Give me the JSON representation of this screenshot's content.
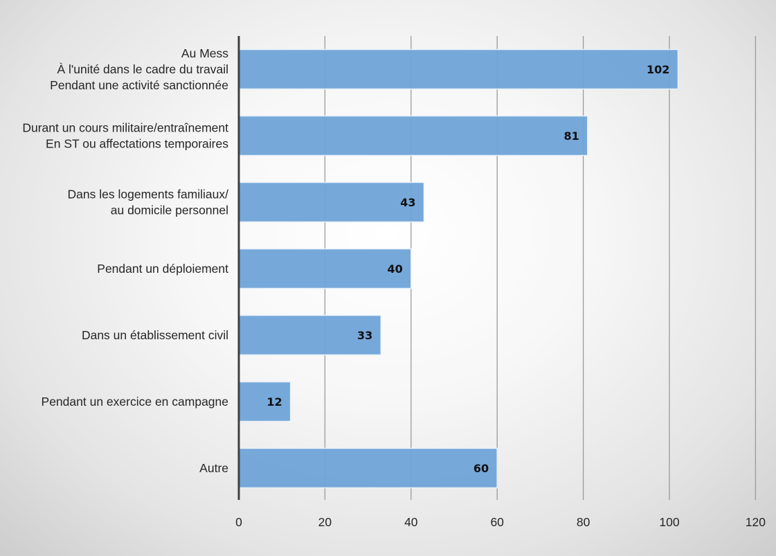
{
  "chart_data": {
    "type": "bar",
    "orientation": "horizontal",
    "categories": [
      [
        "Au Mess",
        "À l'unité dans le cadre du travail",
        "Pendant une activité sanctionnée"
      ],
      [
        "Durant un cours militaire/entraînement",
        "En ST ou affectations temporaires"
      ],
      [
        "Dans les logements familiaux/",
        "au domicile personnel"
      ],
      [
        "Pendant un déploiement"
      ],
      [
        "Dans un établissement civil"
      ],
      [
        "Pendant un exercice en campagne"
      ],
      [
        "Autre"
      ]
    ],
    "values": [
      102,
      81,
      43,
      40,
      33,
      12,
      60
    ],
    "data_labels": [
      "102",
      "81",
      "43",
      "40",
      "33",
      "12",
      "60"
    ],
    "x_ticks": [
      "0",
      "20",
      "40",
      "60",
      "80",
      "100",
      "120"
    ],
    "xlim": [
      0,
      120
    ],
    "bar_color": "#6fa3d8",
    "bar_border_color": "#e8f0f8",
    "gridlines": "vertical",
    "legend": "none",
    "title": ""
  }
}
